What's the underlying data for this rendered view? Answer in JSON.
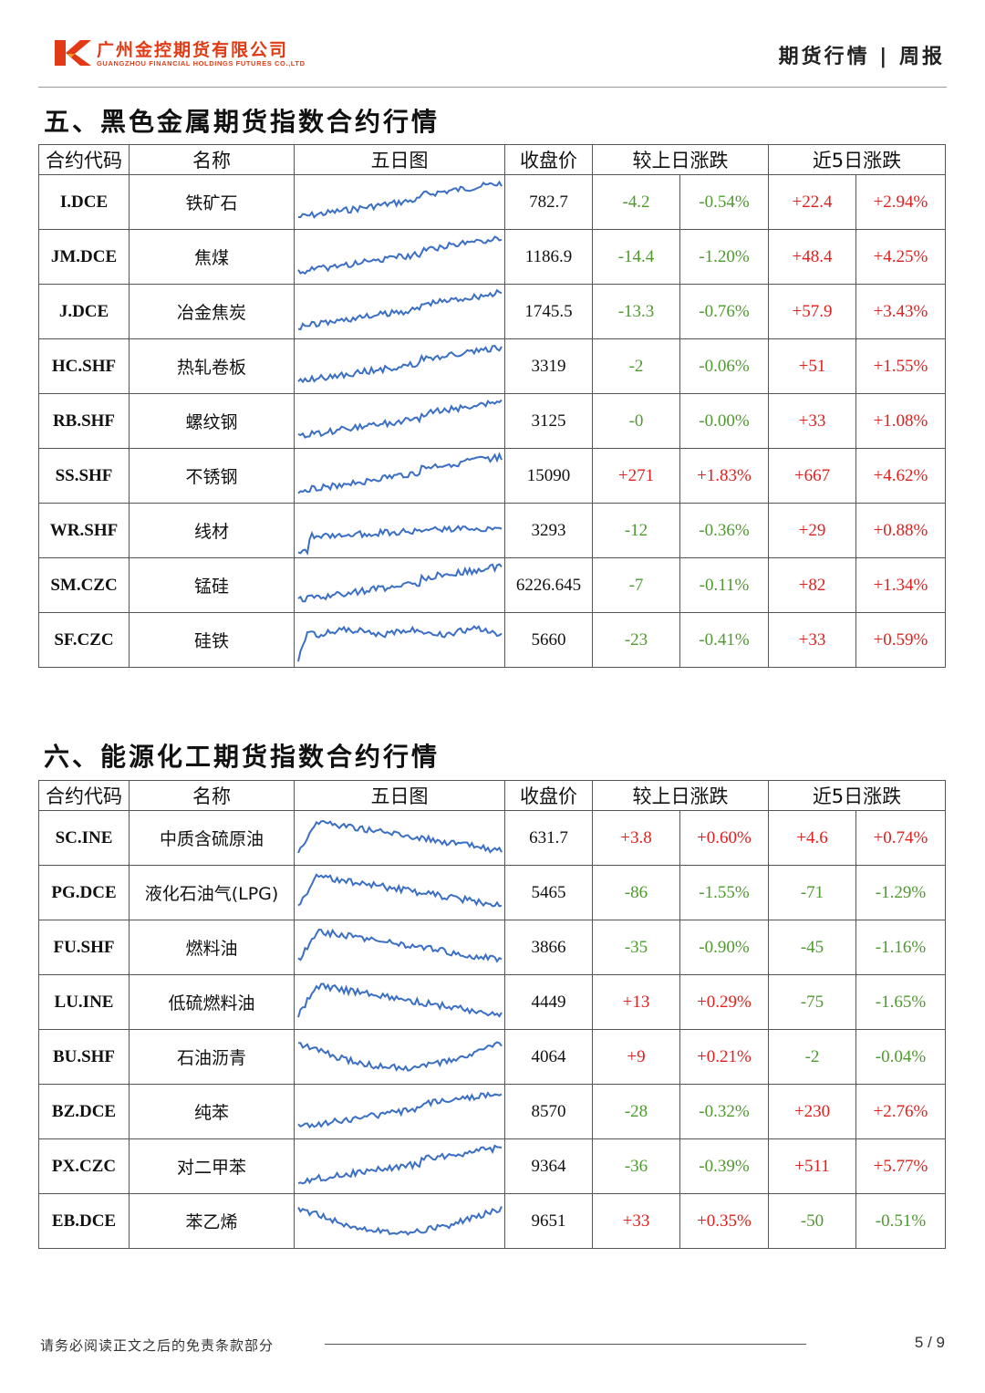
{
  "header": {
    "company_cn": "广州金控期货有限公司",
    "company_en": "GUANGZHOU FINANCIAL HOLDINGS FUTURES CO.,LTD",
    "report_type": "期货行情 | 周报"
  },
  "columns": {
    "code": "合约代码",
    "name": "名称",
    "chart": "五日图",
    "close": "收盘价",
    "day_change": "较上日涨跌",
    "five_day_change": "近5日涨跌"
  },
  "colors": {
    "up": "#e0201e",
    "down": "#4e9a2e",
    "sparkline": "#3b6fc4",
    "brand": "#e23a14"
  },
  "sections": [
    {
      "title": "五、黑色金属期货指数合约行情",
      "rows": [
        {
          "code": "I.DCE",
          "name": "铁矿石",
          "close": "782.7",
          "chg": "-4.2",
          "chg_pct": "-0.54%",
          "chg5": "+22.4",
          "chg5_pct": "+2.94%",
          "trend": "up"
        },
        {
          "code": "JM.DCE",
          "name": "焦煤",
          "close": "1186.9",
          "chg": "-14.4",
          "chg_pct": "-1.20%",
          "chg5": "+48.4",
          "chg5_pct": "+4.25%",
          "trend": "up"
        },
        {
          "code": "J.DCE",
          "name": "冶金焦炭",
          "close": "1745.5",
          "chg": "-13.3",
          "chg_pct": "-0.76%",
          "chg5": "+57.9",
          "chg5_pct": "+3.43%",
          "trend": "up"
        },
        {
          "code": "HC.SHF",
          "name": "热轧卷板",
          "close": "3319",
          "chg": "-2",
          "chg_pct": "-0.06%",
          "chg5": "+51",
          "chg5_pct": "+1.55%",
          "trend": "up"
        },
        {
          "code": "RB.SHF",
          "name": "螺纹钢",
          "close": "3125",
          "chg": "-0",
          "chg_pct": "-0.00%",
          "chg5": "+33",
          "chg5_pct": "+1.08%",
          "trend": "up"
        },
        {
          "code": "SS.SHF",
          "name": "不锈钢",
          "close": "15090",
          "chg": "+271",
          "chg_pct": "+1.83%",
          "chg5": "+667",
          "chg5_pct": "+4.62%",
          "trend": "up"
        },
        {
          "code": "WR.SHF",
          "name": "线材",
          "close": "3293",
          "chg": "-12",
          "chg_pct": "-0.36%",
          "chg5": "+29",
          "chg5_pct": "+0.88%",
          "trend": "flat-up"
        },
        {
          "code": "SM.CZC",
          "name": "锰硅",
          "close": "6226.645",
          "chg": "-7",
          "chg_pct": "-0.11%",
          "chg5": "+82",
          "chg5_pct": "+1.34%",
          "trend": "up"
        },
        {
          "code": "SF.CZC",
          "name": "硅铁",
          "close": "5660",
          "chg": "-23",
          "chg_pct": "-0.41%",
          "chg5": "+33",
          "chg5_pct": "+0.59%",
          "trend": "spike-flat"
        }
      ]
    },
    {
      "title": "六、能源化工期货指数合约行情",
      "rows": [
        {
          "code": "SC.INE",
          "name": "中质含硫原油",
          "close": "631.7",
          "chg": "+3.8",
          "chg_pct": "+0.60%",
          "chg5": "+4.6",
          "chg5_pct": "+0.74%",
          "trend": "spike-down"
        },
        {
          "code": "PG.DCE",
          "name": "液化石油气(LPG)",
          "close": "5465",
          "chg": "-86",
          "chg_pct": "-1.55%",
          "chg5": "-71",
          "chg5_pct": "-1.29%",
          "trend": "spike-down"
        },
        {
          "code": "FU.SHF",
          "name": "燃料油",
          "close": "3866",
          "chg": "-35",
          "chg_pct": "-0.90%",
          "chg5": "-45",
          "chg5_pct": "-1.16%",
          "trend": "spike-down"
        },
        {
          "code": "LU.INE",
          "name": "低硫燃料油",
          "close": "4449",
          "chg": "+13",
          "chg_pct": "+0.29%",
          "chg5": "-75",
          "chg5_pct": "-1.65%",
          "trend": "spike-down"
        },
        {
          "code": "BU.SHF",
          "name": "石油沥青",
          "close": "4064",
          "chg": "+9",
          "chg_pct": "+0.21%",
          "chg5": "-2",
          "chg5_pct": "-0.04%",
          "trend": "down-recover"
        },
        {
          "code": "BZ.DCE",
          "name": "纯苯",
          "close": "8570",
          "chg": "-28",
          "chg_pct": "-0.32%",
          "chg5": "+230",
          "chg5_pct": "+2.76%",
          "trend": "up"
        },
        {
          "code": "PX.CZC",
          "name": "对二甲苯",
          "close": "9364",
          "chg": "-36",
          "chg_pct": "-0.39%",
          "chg5": "+511",
          "chg5_pct": "+5.77%",
          "trend": "up"
        },
        {
          "code": "EB.DCE",
          "name": "苯乙烯",
          "close": "9651",
          "chg": "+33",
          "chg_pct": "+0.35%",
          "chg5": "-50",
          "chg5_pct": "-0.51%",
          "trend": "down-recover"
        }
      ]
    }
  ],
  "footer": {
    "note": "请务必阅读正文之后的免责条款部分",
    "page": "5 / 9"
  }
}
